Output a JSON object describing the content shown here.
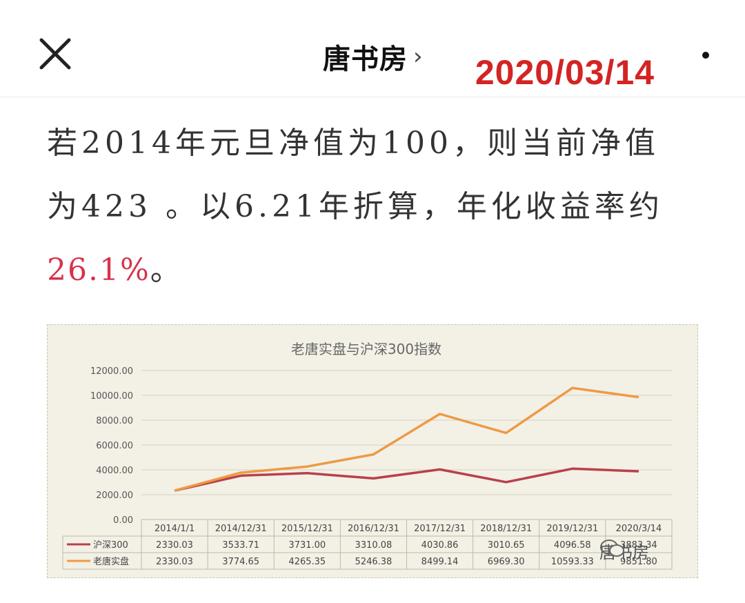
{
  "nav": {
    "title": "唐书房",
    "chevron": "›",
    "date_stamp": "2020/03/14"
  },
  "article": {
    "line1": "若2014年元旦净值为100，则当前净值",
    "line2": "为423 。以6.21年折算，年化收益率约",
    "highlight": "26.1%",
    "line3_tail": "。"
  },
  "watermark": {
    "text": "唐书房"
  },
  "colors": {
    "hs300": "#b8404a",
    "laotang": "#ee9a43",
    "accent_red": "#d6334a",
    "chart_bg": "#f3f0e6"
  },
  "chart_data": {
    "type": "line",
    "title": "老唐实盘与沪深300指数",
    "categories": [
      "2014/1/1",
      "2014/12/31",
      "2015/12/31",
      "2016/12/31",
      "2017/12/31",
      "2018/12/31",
      "2019/12/31",
      "2020/3/14"
    ],
    "series": [
      {
        "name": "沪深300",
        "color": "#b8404a",
        "values": [
          2330.03,
          3533.71,
          3731.0,
          3310.08,
          4030.86,
          3010.65,
          4096.58,
          3883.34
        ],
        "labels": [
          "2330.03",
          "3533.71",
          "3731.00",
          "3310.08",
          "4030.86",
          "3010.65",
          "4096.58",
          "3883.34"
        ]
      },
      {
        "name": "老唐实盘",
        "color": "#ee9a43",
        "values": [
          2330.03,
          3774.65,
          4265.35,
          5246.38,
          8499.14,
          6969.3,
          10593.33,
          9851.8
        ],
        "labels": [
          "2330.03",
          "3774.65",
          "4265.35",
          "5246.38",
          "8499.14",
          "6969.30",
          "10593.33",
          "9851.80"
        ]
      }
    ],
    "ylim": [
      0,
      12000
    ],
    "yticks": [
      "0.00",
      "2000.00",
      "4000.00",
      "6000.00",
      "8000.00",
      "10000.00",
      "12000.00"
    ],
    "ytick_values": [
      0,
      2000,
      4000,
      6000,
      8000,
      10000,
      12000
    ],
    "grid": true,
    "legend": "data-table-below"
  }
}
